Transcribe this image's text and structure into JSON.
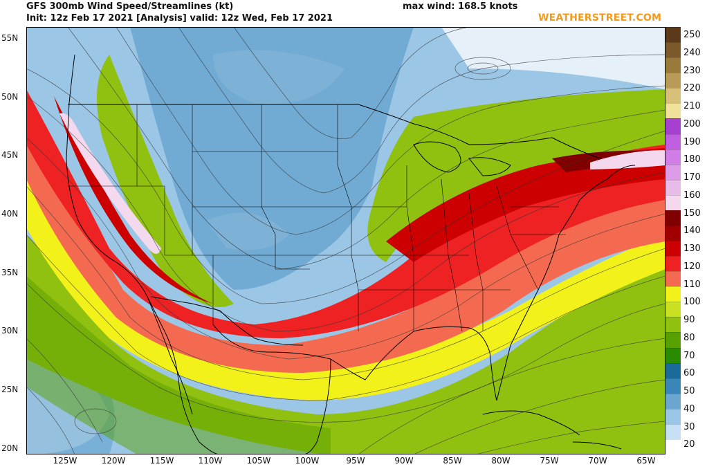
{
  "header": {
    "title": "GFS 300mb Wind Speed/Streamlines (kt)",
    "subtitle": "Init: 12z Feb 17 2021  [Analysis]  valid: 12z Wed, Feb 17 2021",
    "max_wind": "max wind: 168.5 knots",
    "brand": "WEATHERSTREET.COM"
  },
  "map": {
    "lon_range": [
      -129,
      -63
    ],
    "lat_range": [
      19.5,
      56
    ],
    "lat_labels": [
      "55N",
      "50N",
      "45N",
      "40N",
      "35N",
      "30N",
      "25N",
      "20N"
    ],
    "lat_values": [
      55,
      50,
      45,
      40,
      35,
      30,
      25,
      20
    ],
    "lon_labels": [
      "125W",
      "120W",
      "115W",
      "110W",
      "105W",
      "100W",
      "95W",
      "90W",
      "85W",
      "80W",
      "75W",
      "70W",
      "65W"
    ],
    "lon_values": [
      -125,
      -120,
      -115,
      -110,
      -105,
      -100,
      -95,
      -90,
      -85,
      -80,
      -75,
      -70,
      -65
    ]
  },
  "colorbar": {
    "labels": [
      "250",
      "240",
      "230",
      "220",
      "210",
      "200",
      "190",
      "180",
      "170",
      "160",
      "150",
      "140",
      "130",
      "120",
      "110",
      "100",
      "90",
      "80",
      "70",
      "60",
      "50",
      "40",
      "30",
      "20"
    ],
    "colors": [
      "#5a3a1a",
      "#7a5a2a",
      "#9a7a3a",
      "#b89a56",
      "#d6c07a",
      "#f0e29a",
      "#a640d0",
      "#c060e0",
      "#d07ee6",
      "#dc9ce8",
      "#e8bce8",
      "#f4d8ee",
      "#800000",
      "#a00000",
      "#cc0000",
      "#ee2222",
      "#f46a50",
      "#f2f21a",
      "#c8e020",
      "#90c010",
      "#58a000",
      "#2a8a00",
      "#1a6a9a",
      "#3a86b8",
      "#6aa6d0",
      "#9cc6e6",
      "#c8e0f4",
      "#ffffff"
    ]
  }
}
